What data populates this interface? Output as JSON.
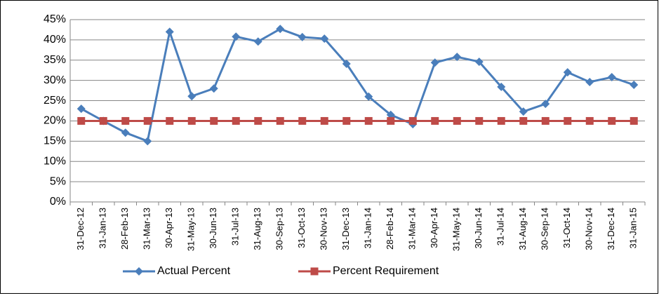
{
  "chart_data": {
    "type": "line",
    "categories": [
      "31-Dec-12",
      "31-Jan-13",
      "28-Feb-13",
      "31-Mar-13",
      "30-Apr-13",
      "31-May-13",
      "30-Jun-13",
      "31-Jul-13",
      "31-Aug-13",
      "30-Sep-13",
      "31-Oct-13",
      "30-Nov-13",
      "31-Dec-13",
      "31-Jan-14",
      "28-Feb-14",
      "31-Mar-14",
      "30-Apr-14",
      "31-May-14",
      "30-Jun-14",
      "31-Jul-14",
      "31-Aug-14",
      "30-Sep-14",
      "31-Oct-14",
      "30-Nov-14",
      "31-Dec-14",
      "31-Jan-15"
    ],
    "series": [
      {
        "name": "Actual Percent",
        "color": "#4a7ebb",
        "marker": "diamond",
        "values": [
          23.0,
          20.0,
          17.1,
          15.0,
          42.0,
          26.1,
          28.0,
          40.8,
          39.6,
          42.7,
          40.7,
          40.3,
          34.1,
          26.0,
          21.5,
          19.2,
          34.4,
          35.8,
          34.6,
          28.4,
          22.3,
          24.2,
          32.0,
          29.6,
          30.8,
          28.9
        ]
      },
      {
        "name": "Percent Requirement",
        "color": "#be4b48",
        "marker": "square",
        "values": [
          20,
          20,
          20,
          20,
          20,
          20,
          20,
          20,
          20,
          20,
          20,
          20,
          20,
          20,
          20,
          20,
          20,
          20,
          20,
          20,
          20,
          20,
          20,
          20,
          20,
          20
        ]
      }
    ],
    "ylim": [
      0,
      45
    ],
    "yticks": [
      {
        "value": 0,
        "label": "0%"
      },
      {
        "value": 5,
        "label": "5%"
      },
      {
        "value": 10,
        "label": "10%"
      },
      {
        "value": 15,
        "label": "15%"
      },
      {
        "value": 20,
        "label": "20%"
      },
      {
        "value": 25,
        "label": "25%"
      },
      {
        "value": 30,
        "label": "30%"
      },
      {
        "value": 35,
        "label": "35%"
      },
      {
        "value": 40,
        "label": "40%"
      },
      {
        "value": 45,
        "label": "45%"
      }
    ],
    "grid": true,
    "legend": "bottom"
  }
}
